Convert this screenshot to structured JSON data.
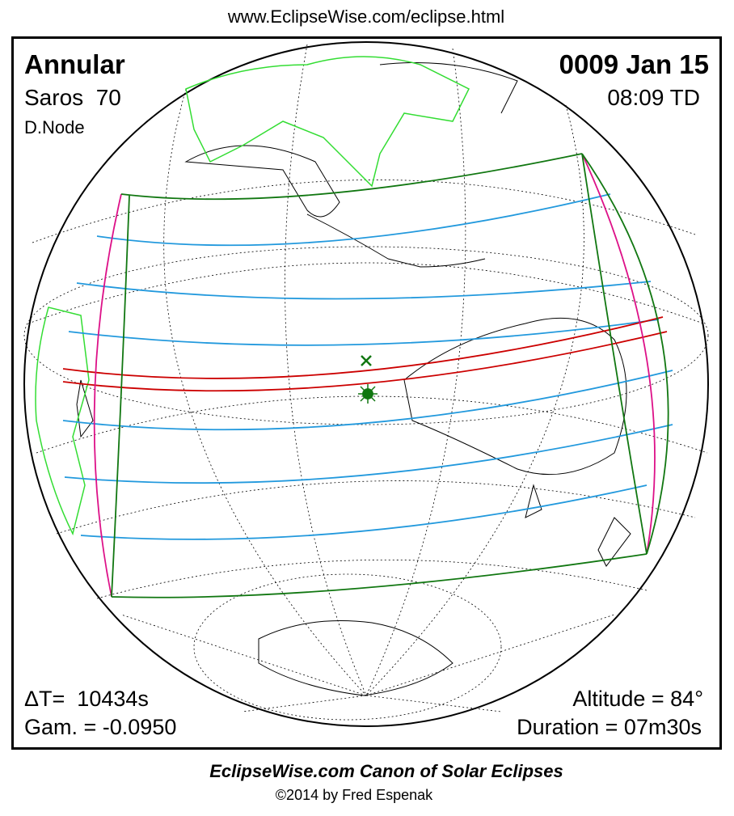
{
  "header": {
    "url": "www.EclipseWise.com/eclipse.html"
  },
  "eclipse": {
    "type": "Annular",
    "saros": "Saros  70",
    "node": "D.Node",
    "date": "0009 Jan 15",
    "time": "08:09 TD",
    "delta_t": "ΔT=  10434s",
    "gamma": "Gam. = -0.0950",
    "altitude": "Altitude = 84°",
    "duration": "Duration = 07m30s"
  },
  "footer": {
    "title": "EclipseWise.com Canon of Solar Eclipses",
    "copyright": "©2014 by Fred Espenak"
  }
}
